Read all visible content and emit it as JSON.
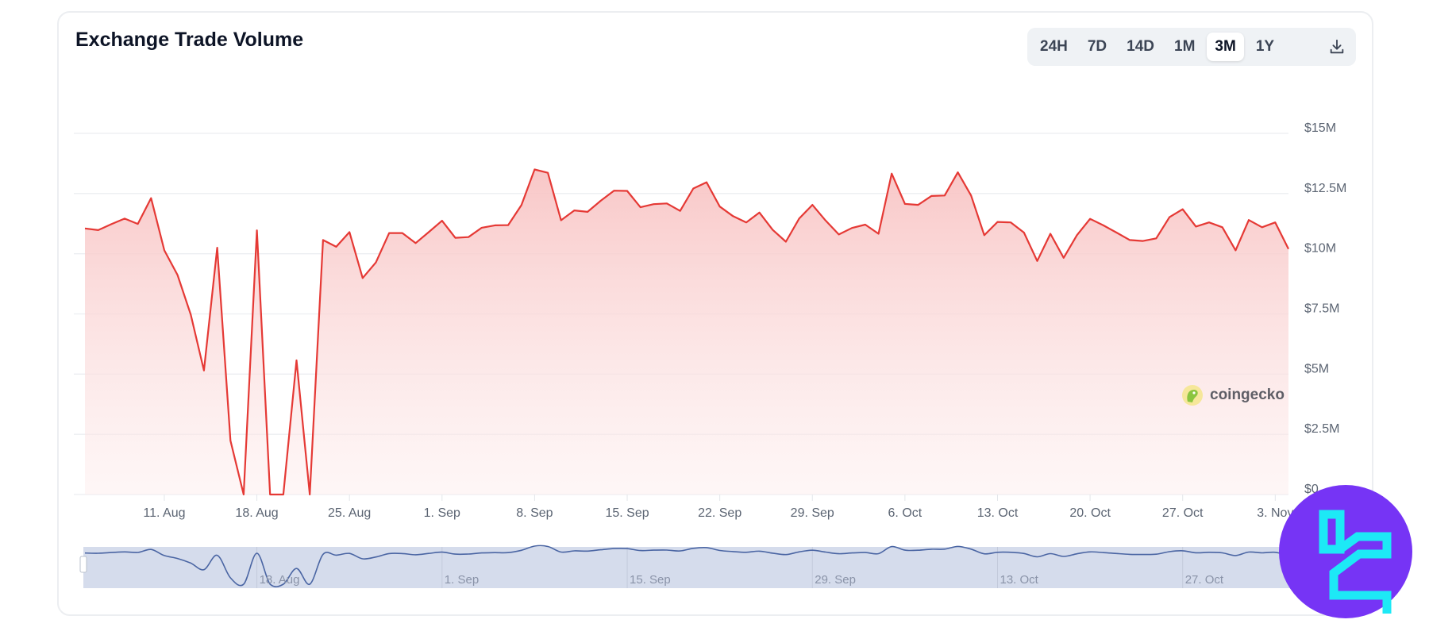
{
  "header": {
    "title": "Exchange Trade Volume"
  },
  "range_selector": {
    "options": [
      "24H",
      "7D",
      "14D",
      "1M",
      "3M",
      "1Y"
    ],
    "selected": "3M",
    "download_icon": "download-icon"
  },
  "watermark": {
    "text": "coingecko"
  },
  "colors": {
    "line": "#e53935",
    "fill": "#f8c9c9",
    "navigator_fill": "#d5dcec",
    "navigator_line": "#4a65a3",
    "logo_bg": "#7634f5",
    "logo_fg": "#1de9f6"
  },
  "chart_data": {
    "type": "area",
    "title": "Exchange Trade Volume",
    "x_start": "2024-08-05",
    "x_interval": "1 day",
    "y_unit": "USD (millions)",
    "ylim": [
      0,
      15
    ],
    "y_ticks": [
      "$0",
      "$2.5M",
      "$5M",
      "$7.5M",
      "$10M",
      "$12.5M",
      "$15M"
    ],
    "y_tick_values": [
      0,
      2.5,
      5,
      7.5,
      10,
      12.5,
      15
    ],
    "x_ticks": [
      "11. Aug",
      "18. Aug",
      "25. Aug",
      "1. Sep",
      "8. Sep",
      "15. Sep",
      "22. Sep",
      "29. Sep",
      "6. Oct",
      "13. Oct",
      "20. Oct",
      "27. Oct",
      "3. Nov"
    ],
    "x_tick_dates": [
      "2024-08-11",
      "2024-08-18",
      "2024-08-25",
      "2024-09-01",
      "2024-09-08",
      "2024-09-15",
      "2024-09-22",
      "2024-09-29",
      "2024-10-06",
      "2024-10-13",
      "2024-10-20",
      "2024-10-27",
      "2024-11-03"
    ],
    "navigator_ticks": [
      "18. Aug",
      "1. Sep",
      "15. Sep",
      "29. Sep",
      "13. Oct",
      "27. Oct"
    ],
    "navigator_tick_dates": [
      "2024-08-18",
      "2024-09-01",
      "2024-09-15",
      "2024-09-29",
      "2024-10-13",
      "2024-10-27"
    ],
    "grid": true,
    "legend": "none",
    "values": [
      11.05,
      10.98,
      11.23,
      11.46,
      11.24,
      12.31,
      10.14,
      9.12,
      7.47,
      5.15,
      10.25,
      2.24,
      0,
      10.97,
      0,
      0,
      5.57,
      0,
      10.57,
      10.29,
      10.9,
      8.99,
      9.64,
      10.86,
      10.86,
      10.44,
      10.9,
      11.37,
      10.66,
      10.69,
      11.08,
      11.18,
      11.19,
      12.02,
      13.5,
      13.36,
      11.39,
      11.8,
      11.74,
      12.2,
      12.62,
      12.61,
      11.93,
      12.06,
      12.09,
      11.78,
      12.71,
      12.97,
      11.96,
      11.56,
      11.3,
      11.71,
      10.99,
      10.5,
      11.46,
      12.03,
      11.38,
      10.8,
      11.07,
      11.21,
      10.83,
      13.33,
      12.07,
      12.03,
      12.4,
      12.42,
      13.38,
      12.42,
      10.77,
      11.32,
      11.3,
      10.88,
      9.7,
      10.83,
      9.83,
      10.77,
      11.45,
      11.18,
      10.88,
      10.57,
      10.53,
      10.64,
      11.52,
      11.85,
      11.13,
      11.3,
      11.1,
      10.14,
      11.4,
      11.1,
      11.3,
      10.2
    ]
  }
}
